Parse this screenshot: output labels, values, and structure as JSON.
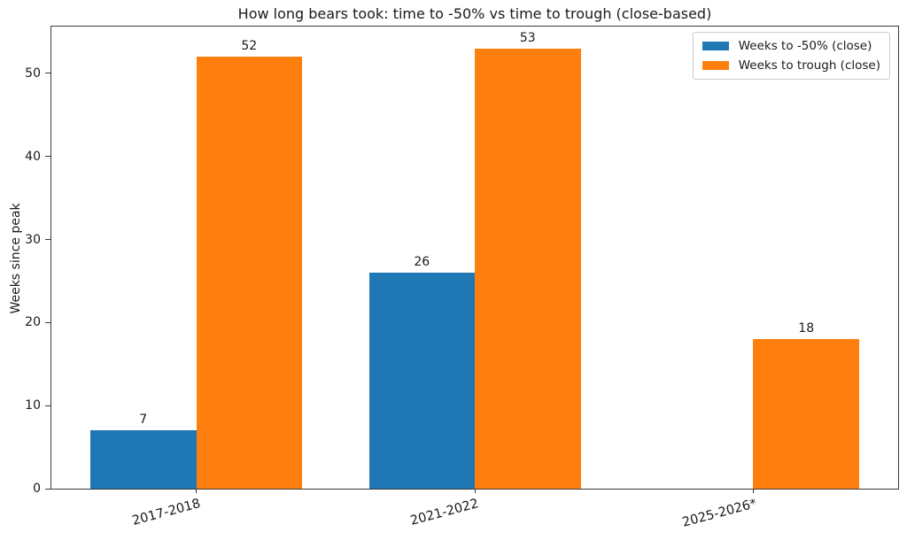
{
  "chart_data": {
    "type": "bar",
    "title": "How long bears took: time to -50% vs time to trough (close-based)",
    "ylabel": "Weeks since peak",
    "xlabel": "",
    "categories": [
      "2017-2018",
      "2021-2022",
      "2025-2026*"
    ],
    "series": [
      {
        "name": "Weeks to -50% (close)",
        "color": "#1f77b4",
        "values": [
          7,
          26,
          null
        ]
      },
      {
        "name": "Weeks to trough (close)",
        "color": "#ff7f0e",
        "values": [
          52,
          53,
          18
        ]
      }
    ],
    "yticks": [
      0,
      10,
      20,
      30,
      40,
      50
    ],
    "ylim": [
      0,
      55.65
    ],
    "xlim": [
      -0.52,
      2.52
    ],
    "bar_width": 0.38,
    "grid": false,
    "legend_position": "upper right"
  }
}
